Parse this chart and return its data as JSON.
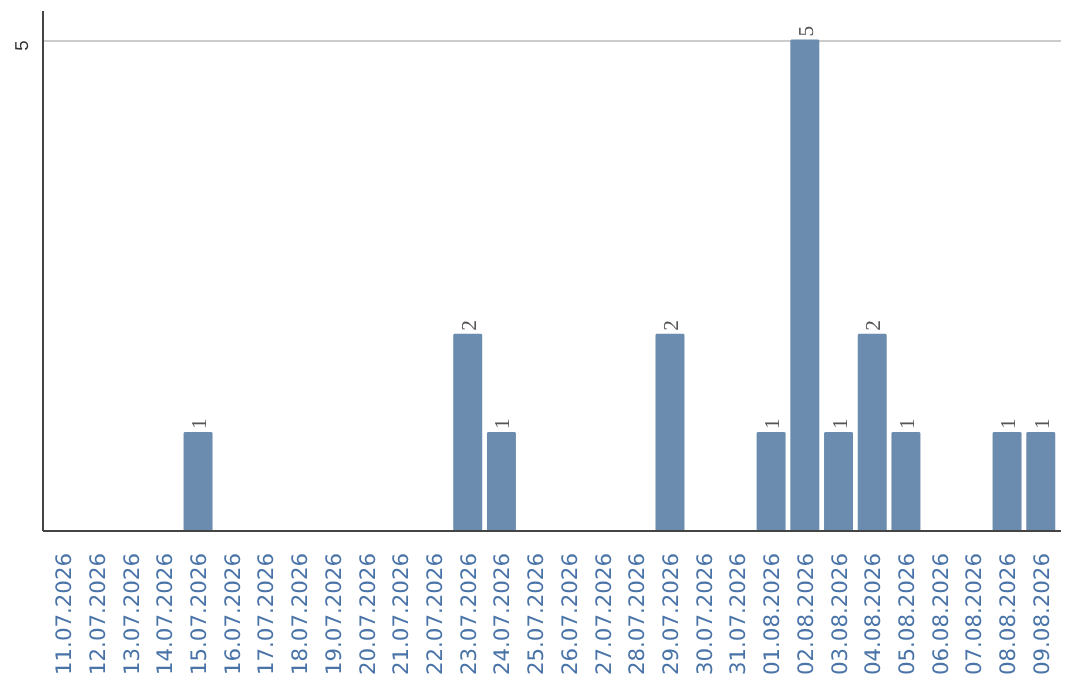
{
  "chart_data": {
    "type": "bar",
    "categories": [
      "11.07.2026",
      "12.07.2026",
      "13.07.2026",
      "14.07.2026",
      "15.07.2026",
      "16.07.2026",
      "17.07.2026",
      "18.07.2026",
      "19.07.2026",
      "20.07.2026",
      "21.07.2026",
      "22.07.2026",
      "23.07.2026",
      "24.07.2026",
      "25.07.2026",
      "26.07.2026",
      "27.07.2026",
      "28.07.2026",
      "29.07.2026",
      "30.07.2026",
      "31.07.2026",
      "01.08.2026",
      "02.08.2026",
      "03.08.2026",
      "04.08.2026",
      "05.08.2026",
      "06.08.2026",
      "07.08.2026",
      "08.08.2026",
      "09.08.2026"
    ],
    "values": [
      0,
      0,
      0,
      0,
      1,
      0,
      0,
      0,
      0,
      0,
      0,
      0,
      2,
      1,
      0,
      0,
      0,
      0,
      2,
      0,
      0,
      1,
      5,
      1,
      2,
      1,
      0,
      0,
      1,
      1
    ],
    "value_labels": [
      null,
      null,
      null,
      null,
      "1",
      null,
      null,
      null,
      null,
      null,
      null,
      null,
      "2",
      "1",
      null,
      null,
      null,
      null,
      "2",
      null,
      null,
      "1",
      "5",
      "1",
      "2",
      "1",
      null,
      null,
      "1",
      "1"
    ],
    "color": "#6b8cae",
    "ylim": [
      0,
      5.3
    ],
    "yticks": [
      5
    ],
    "grid": "y"
  }
}
